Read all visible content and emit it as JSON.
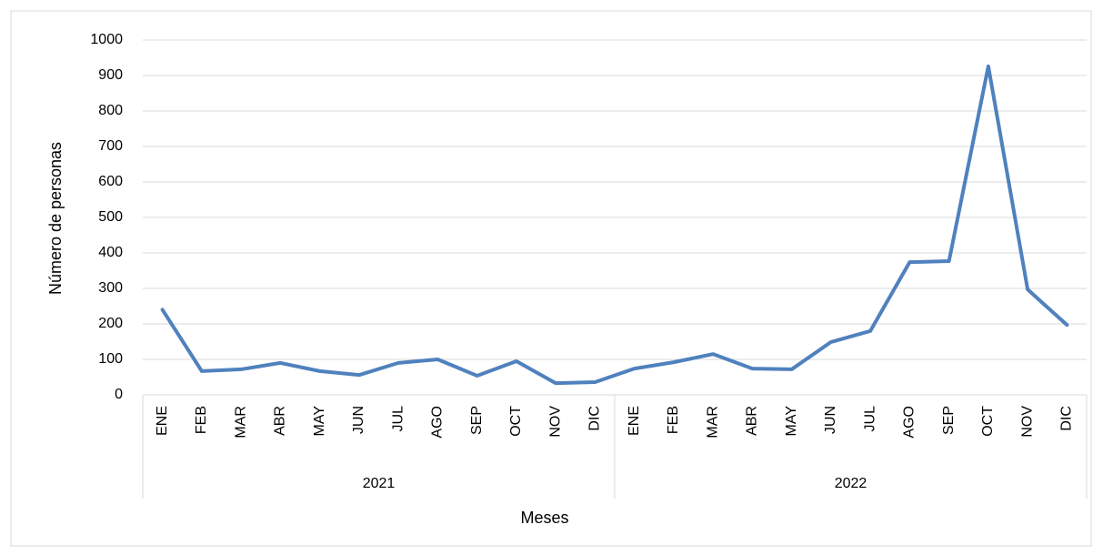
{
  "chart_data": {
    "type": "line",
    "y_axis_label": "Número de personas",
    "x_axis_label": "Meses",
    "categories": [
      "ENE",
      "FEB",
      "MAR",
      "ABR",
      "MAY",
      "JUN",
      "JUL",
      "AGO",
      "SEP",
      "OCT",
      "NOV",
      "DIC",
      "ENE",
      "FEB",
      "MAR",
      "ABR",
      "MAY",
      "JUN",
      "JUL",
      "AGO",
      "SEP",
      "OCT",
      "NOV",
      "DIC"
    ],
    "category_groups": [
      "2021",
      "2022"
    ],
    "series": [
      {
        "color": "#4f81bd",
        "values": [
          240,
          67,
          72,
          90,
          67,
          56,
          90,
          100,
          54,
          95,
          33,
          36,
          74,
          92,
          115,
          74,
          72,
          149,
          180,
          374,
          377,
          926,
          297,
          197
        ]
      }
    ],
    "ylim": [
      0,
      1000
    ],
    "yticks": [
      0,
      100,
      200,
      300,
      400,
      500,
      600,
      700,
      800,
      900,
      1000
    ],
    "grid": true
  }
}
